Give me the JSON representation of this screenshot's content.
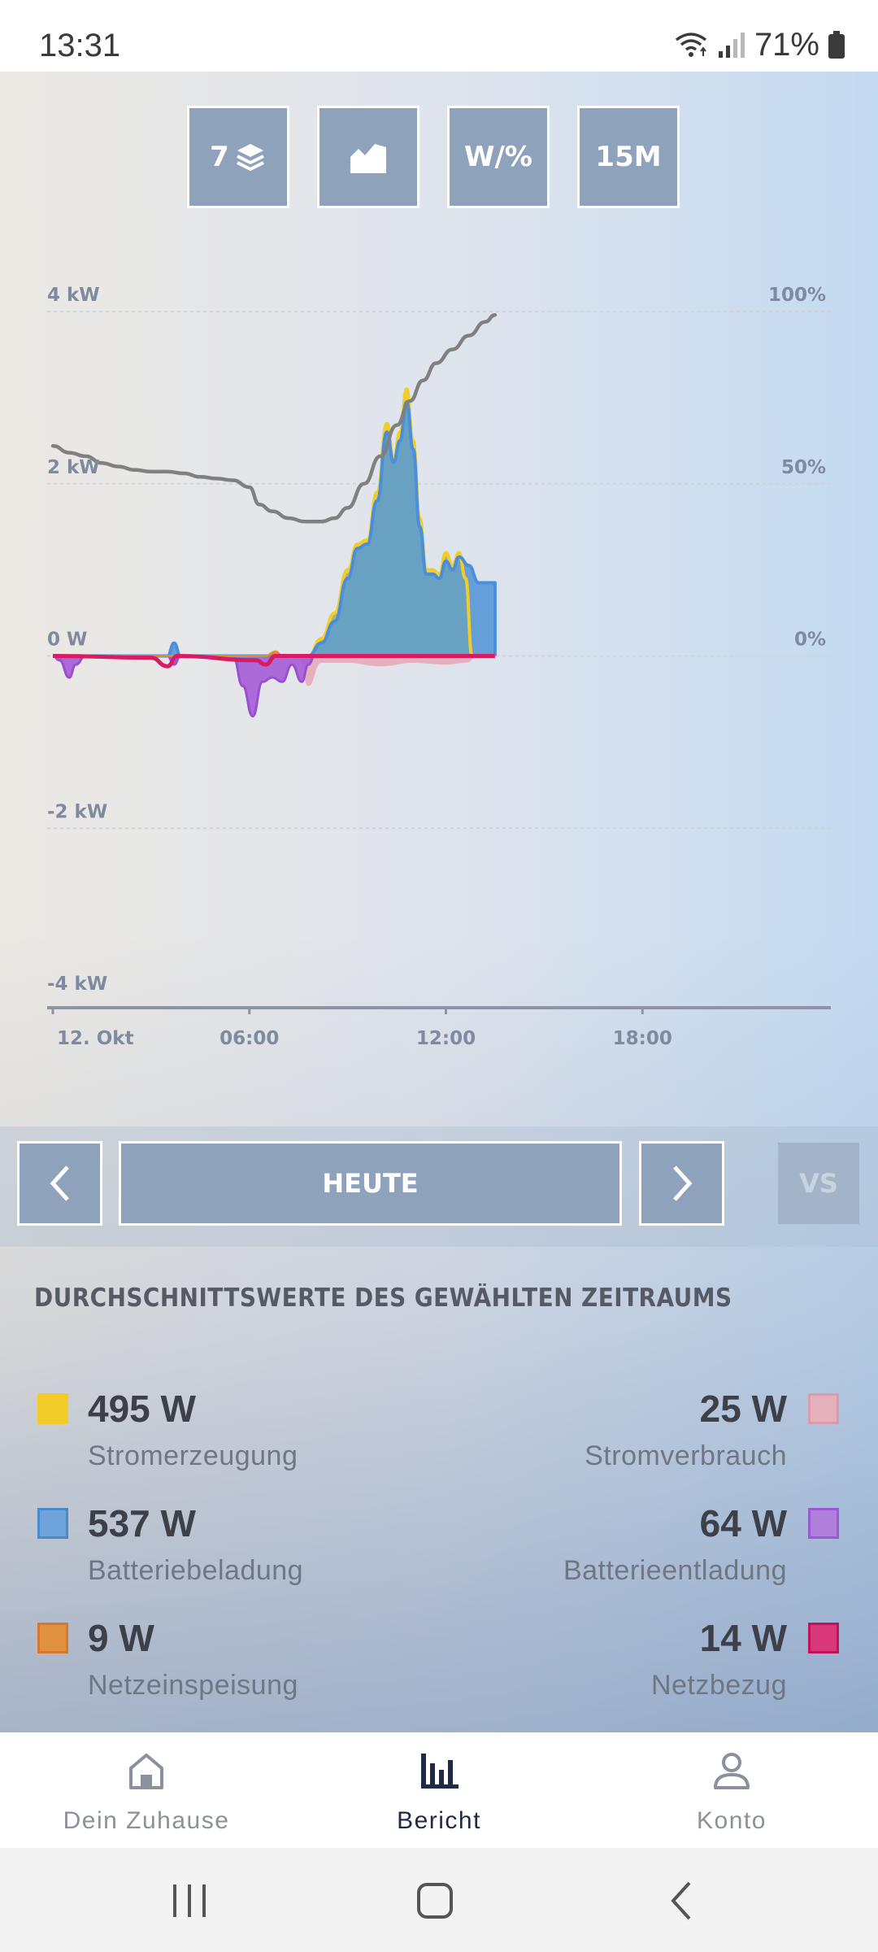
{
  "status_bar": {
    "time": "13:31",
    "battery": "71%"
  },
  "toolbar": {
    "layers_count": "7",
    "units_label": "W/%",
    "interval_label": "15M"
  },
  "chart_data": {
    "type": "area",
    "title": "",
    "y_left_ticks": [
      "4 kW",
      "2 kW",
      "0 W",
      "-2 kW",
      "-4 kW"
    ],
    "y_right_ticks": [
      "100%",
      "50%",
      "0%"
    ],
    "x_ticks": [
      "12. Okt",
      "06:00",
      "12:00",
      "18:00"
    ],
    "ylim_kw": [
      -4,
      4
    ],
    "ylim_right_percent": [
      0,
      100
    ],
    "grid": true,
    "series": [
      {
        "name": "Stromerzeugung",
        "color": "#f2cd2a",
        "axis": "left",
        "points": [
          [
            7.8,
            0
          ],
          [
            8.2,
            0.2
          ],
          [
            8.6,
            0.5
          ],
          [
            9.0,
            1.0
          ],
          [
            9.3,
            1.3
          ],
          [
            9.6,
            1.35
          ],
          [
            9.9,
            1.9
          ],
          [
            10.2,
            2.7
          ],
          [
            10.4,
            2.3
          ],
          [
            10.6,
            2.6
          ],
          [
            10.8,
            3.1
          ],
          [
            11.0,
            2.5
          ],
          [
            11.2,
            1.6
          ],
          [
            11.4,
            1.0
          ],
          [
            11.6,
            1.0
          ],
          [
            11.8,
            0.95
          ],
          [
            12.0,
            1.2
          ],
          [
            12.2,
            1.05
          ],
          [
            12.4,
            1.2
          ],
          [
            12.6,
            0.9
          ],
          [
            12.8,
            0
          ]
        ]
      },
      {
        "name": "Batteriebeladung",
        "color": "#5b9ee0",
        "axis": "left",
        "points": [
          [
            0,
            0
          ],
          [
            3.5,
            0
          ],
          [
            3.7,
            0.15
          ],
          [
            3.9,
            0
          ],
          [
            7.8,
            0
          ],
          [
            8.2,
            0.15
          ],
          [
            8.6,
            0.4
          ],
          [
            9.0,
            0.9
          ],
          [
            9.3,
            1.25
          ],
          [
            9.6,
            1.3
          ],
          [
            9.9,
            1.8
          ],
          [
            10.2,
            2.6
          ],
          [
            10.4,
            2.25
          ],
          [
            10.6,
            2.5
          ],
          [
            10.8,
            2.95
          ],
          [
            11.0,
            2.4
          ],
          [
            11.2,
            1.5
          ],
          [
            11.4,
            0.95
          ],
          [
            11.6,
            0.95
          ],
          [
            11.8,
            0.9
          ],
          [
            12.0,
            1.1
          ],
          [
            12.2,
            1.0
          ],
          [
            12.4,
            1.15
          ],
          [
            12.7,
            1.05
          ],
          [
            13.0,
            0.85
          ],
          [
            13.5,
            0.85
          ],
          [
            13.5,
            0
          ]
        ]
      },
      {
        "name": "Batterieentladung",
        "color": "#a55bd6",
        "axis": "left",
        "points": [
          [
            0,
            0
          ],
          [
            0.2,
            -0.05
          ],
          [
            0.5,
            -0.25
          ],
          [
            0.7,
            -0.1
          ],
          [
            1.0,
            0
          ],
          [
            3.5,
            0
          ],
          [
            3.7,
            -0.1
          ],
          [
            3.9,
            0
          ],
          [
            5.5,
            0
          ],
          [
            5.8,
            -0.35
          ],
          [
            6.1,
            -0.7
          ],
          [
            6.4,
            -0.3
          ],
          [
            6.7,
            -0.25
          ],
          [
            7.0,
            -0.3
          ],
          [
            7.3,
            -0.1
          ],
          [
            7.6,
            -0.3
          ],
          [
            7.8,
            -0.1
          ],
          [
            8.0,
            0
          ]
        ]
      },
      {
        "name": "Stromverbrauch",
        "color": "#e3a8b6",
        "axis": "left",
        "points": [
          [
            7.5,
            0
          ],
          [
            7.8,
            -0.35
          ],
          [
            8.2,
            -0.08
          ],
          [
            9.0,
            -0.08
          ],
          [
            10.0,
            -0.12
          ],
          [
            11.0,
            -0.08
          ],
          [
            12.0,
            -0.1
          ],
          [
            12.6,
            -0.08
          ],
          [
            13.0,
            0
          ]
        ]
      },
      {
        "name": "Netzeinspeisung",
        "color": "#e58a2c",
        "axis": "left",
        "points": [
          [
            0,
            0
          ],
          [
            6.5,
            0
          ],
          [
            6.8,
            0.05
          ],
          [
            7.0,
            0
          ],
          [
            13.5,
            0
          ]
        ]
      },
      {
        "name": "Netzbezug",
        "color": "#d81b63",
        "axis": "left",
        "points": [
          [
            0,
            0
          ],
          [
            3.0,
            -0.02
          ],
          [
            3.5,
            -0.12
          ],
          [
            3.8,
            0
          ],
          [
            6.2,
            -0.05
          ],
          [
            6.5,
            -0.1
          ],
          [
            6.8,
            0
          ],
          [
            13.5,
            0
          ]
        ]
      },
      {
        "name": "Ladezustand",
        "color": "#808080",
        "axis": "right",
        "points": [
          [
            0,
            61
          ],
          [
            0.5,
            59
          ],
          [
            1,
            58
          ],
          [
            1.5,
            56
          ],
          [
            2,
            55
          ],
          [
            2.5,
            54
          ],
          [
            3,
            53.5
          ],
          [
            3.5,
            53.5
          ],
          [
            4,
            53
          ],
          [
            4.5,
            52
          ],
          [
            5,
            51.5
          ],
          [
            5.5,
            51
          ],
          [
            6,
            49
          ],
          [
            6.3,
            44
          ],
          [
            6.7,
            42
          ],
          [
            7.2,
            40
          ],
          [
            7.7,
            39
          ],
          [
            8.2,
            39
          ],
          [
            8.6,
            40
          ],
          [
            9.0,
            43
          ],
          [
            9.5,
            50
          ],
          [
            10.0,
            58
          ],
          [
            10.5,
            67
          ],
          [
            10.9,
            74
          ],
          [
            11.3,
            80
          ],
          [
            11.7,
            85
          ],
          [
            12.2,
            89
          ],
          [
            12.7,
            93
          ],
          [
            13.2,
            97
          ],
          [
            13.5,
            99
          ]
        ]
      }
    ]
  },
  "period_nav": {
    "current": "HEUTE",
    "compare": "VS"
  },
  "averages": {
    "title": "DURCHSCHNITTSWERTE DES GEWÄHLTEN ZEITRAUMS",
    "left": [
      {
        "value": "495 W",
        "label": "Stromerzeugung",
        "color": "#f2cd2a"
      },
      {
        "value": "537 W",
        "label": "Batteriebeladung",
        "color": "#5b9ee0"
      },
      {
        "value": "9 W",
        "label": "Netzeinspeisung",
        "color": "#e58a2c"
      }
    ],
    "right": [
      {
        "value": "25 W",
        "label": "Stromverbrauch",
        "color": "#e3a8b6"
      },
      {
        "value": "64 W",
        "label": "Batterieentladung",
        "color": "#a55bd6"
      },
      {
        "value": "14 W",
        "label": "Netzbezug",
        "color": "#d81b63"
      }
    ]
  },
  "bottom_nav": [
    {
      "label": "Dein Zuhause",
      "icon": "home-icon"
    },
    {
      "label": "Bericht",
      "icon": "bar-chart-icon",
      "active": true
    },
    {
      "label": "Konto",
      "icon": "person-icon"
    }
  ]
}
